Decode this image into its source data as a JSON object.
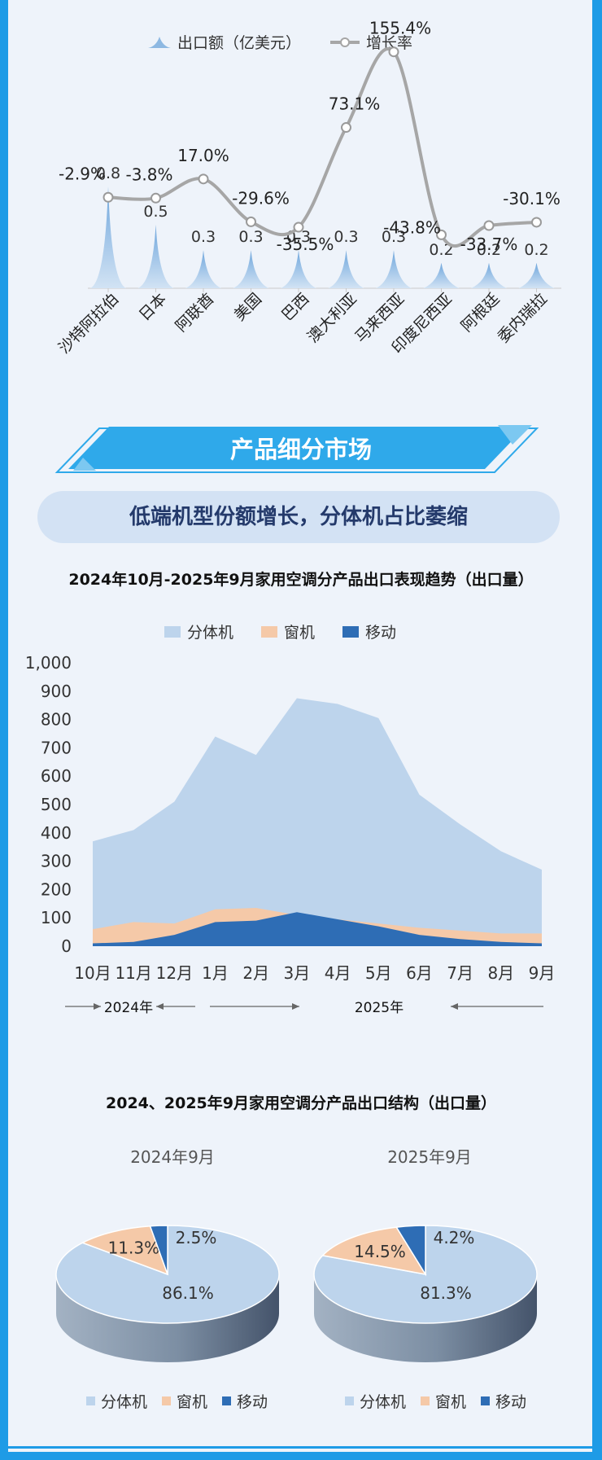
{
  "colors": {
    "frame": "#1e9be6",
    "banner": "#2fa9ea",
    "split": "#bdd4ec",
    "window": "#f5c9a8",
    "portable": "#2e6db5",
    "line": "#a6a6a6",
    "spike": "#8db8e2"
  },
  "top_chart": {
    "legend_export": "出口额（亿美元）",
    "legend_growth": "增长率",
    "export_icon": "spike-icon",
    "growth_icon": "line-marker-icon"
  },
  "section_banner": {
    "title": "产品细分市场"
  },
  "sub_banner": {
    "text": "低端机型份额增长，分体机占比萎缩"
  },
  "area_heading": "2024年10月-2025年9月家用空调分产品出口表现趋势（出口量）",
  "area_legend": {
    "split": "分体机",
    "window": "窗机",
    "portable": "移动"
  },
  "year_labels": {
    "y2024": "2024年",
    "y2025": "2025年"
  },
  "pie_heading": "2024、2025年9月家用空调分产品出口结构（出口量）",
  "pies": [
    {
      "title": "2024年9月",
      "legend": [
        "分体机",
        "窗机",
        "移动"
      ]
    },
    {
      "title": "2025年9月",
      "legend": [
        "分体机",
        "窗机",
        "移动"
      ]
    }
  ],
  "chart_data": [
    {
      "type": "bar",
      "categories": [
        "沙特阿拉伯",
        "日本",
        "阿联酋",
        "美国",
        "巴西",
        "澳大利亚",
        "马来西亚",
        "印度尼西亚",
        "阿根廷",
        "委内瑞拉"
      ],
      "series": [
        {
          "name": "出口额（亿美元）",
          "type": "bar",
          "values": [
            0.8,
            0.5,
            0.3,
            0.3,
            0.3,
            0.3,
            0.3,
            0.2,
            0.2,
            0.2
          ],
          "labels": [
            "0.8",
            "0.5",
            "0.3",
            "0.3",
            "0.3",
            "0.3",
            "0.3",
            "0.2",
            "0.2",
            "0.2"
          ]
        },
        {
          "name": "增长率",
          "type": "line",
          "values": [
            -2.9,
            -3.8,
            17.0,
            -29.6,
            -35.5,
            73.1,
            155.4,
            -43.8,
            -33.7,
            -30.1
          ],
          "labels": [
            "-2.9%",
            "-3.8%",
            "17.0%",
            "-29.6%",
            "-35.5%",
            "73.1%",
            "155.4%",
            "-43.8%",
            "-33.7%",
            "-30.1%"
          ]
        }
      ],
      "legend": "top"
    },
    {
      "type": "area",
      "stacked": false,
      "categories": [
        "10月",
        "11月",
        "12月",
        "1月",
        "2月",
        "3月",
        "4月",
        "5月",
        "6月",
        "7月",
        "8月",
        "9月"
      ],
      "series": [
        {
          "name": "分体机",
          "values": [
            370,
            410,
            510,
            740,
            675,
            875,
            855,
            805,
            535,
            430,
            335,
            270
          ]
        },
        {
          "name": "窗机",
          "values": [
            60,
            85,
            80,
            130,
            135,
            110,
            95,
            80,
            65,
            55,
            45,
            45
          ]
        },
        {
          "name": "移动",
          "values": [
            10,
            15,
            40,
            85,
            90,
            120,
            95,
            70,
            40,
            25,
            15,
            10
          ]
        }
      ],
      "ylim": [
        0,
        1000
      ],
      "yticks": [
        "1,000",
        "900",
        "800",
        "700",
        "600",
        "500",
        "400",
        "300",
        "200",
        "100",
        "0"
      ],
      "legend": "top"
    },
    {
      "type": "pie",
      "title": "2024年9月",
      "labels": [
        "分体机",
        "窗机",
        "移动"
      ],
      "values": [
        86.1,
        11.3,
        2.5
      ],
      "value_labels": [
        "86.1%",
        "11.3%",
        "2.5%"
      ]
    },
    {
      "type": "pie",
      "title": "2025年9月",
      "labels": [
        "分体机",
        "窗机",
        "移动"
      ],
      "values": [
        81.3,
        14.5,
        4.2
      ],
      "value_labels": [
        "81.3%",
        "14.5%",
        "4.2%"
      ]
    }
  ]
}
